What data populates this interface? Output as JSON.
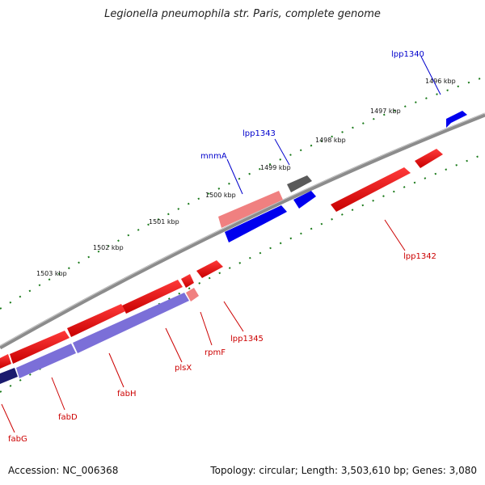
{
  "title": "Legionella pneumophila str. Paris, complete genome",
  "footer": {
    "accession": "Accession: NC_006368",
    "summary": "Topology: circular; Length: 3,503,610 bp; Genes: 3,080"
  },
  "colors": {
    "forward_gene": "#ff0000",
    "forward_gene_light": "#f08080",
    "reverse_gene": "#0000ff",
    "reverse_gene_light": "#7b6fd8",
    "other_gene": "#5a5a5a",
    "backbone": "#8c8c8c",
    "tick": "#1a7a1a",
    "forward_label": "#cc0000",
    "reverse_label": "#0000cc"
  },
  "scale_labels": [
    "1496 kbp",
    "1497 kbp",
    "1498 kbp",
    "1499 kbp",
    "1500 kbp",
    "1501 kbp",
    "1502 kbp",
    "1503 kbp"
  ],
  "gene_labels": {
    "lpp1340": "lpp1340",
    "lpp1343": "lpp1343",
    "mnmA": "mnmA",
    "lpp1342": "lpp1342",
    "lpp1345": "lpp1345",
    "rpmF": "rpmF",
    "plsX": "plsX",
    "fabH": "fabH",
    "fabD": "fabD",
    "fabG": "fabG"
  }
}
